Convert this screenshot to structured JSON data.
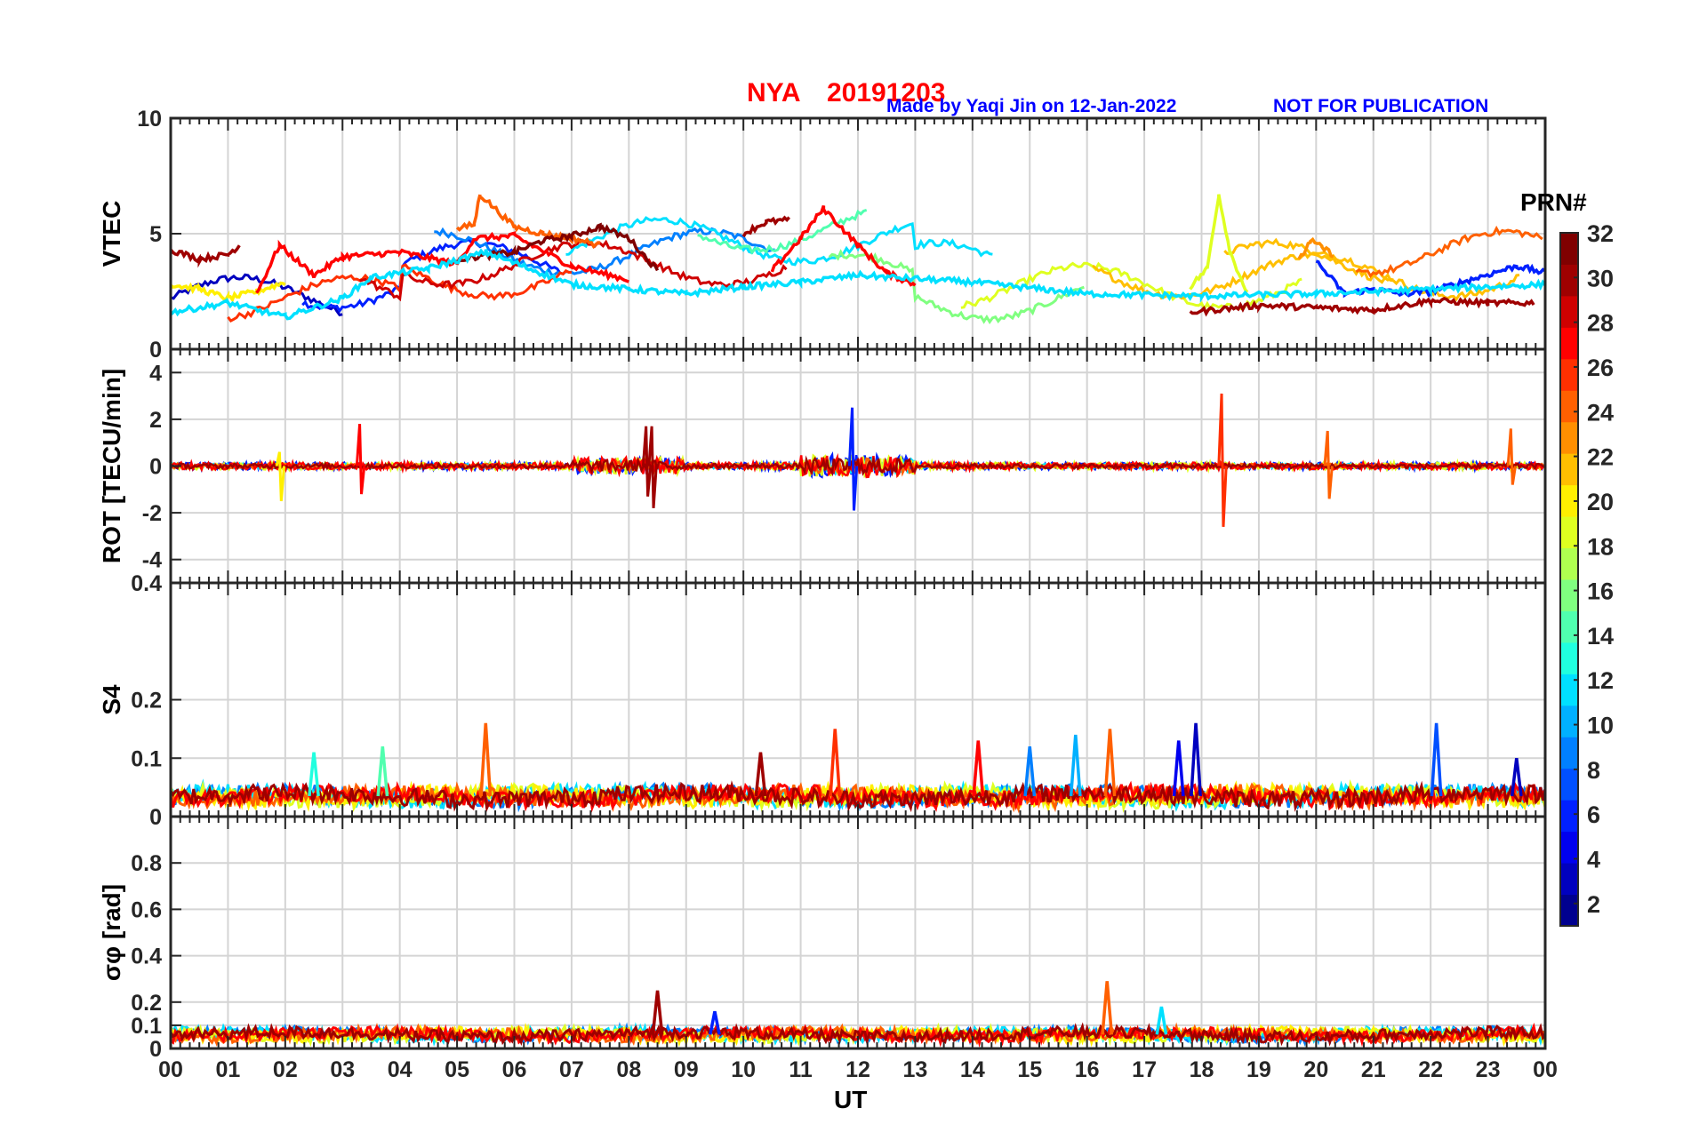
{
  "header": {
    "site": "NYA",
    "date": "20191203",
    "credit": "Made by Yaqi Jin on 12-Jan-2022",
    "notice": "NOT FOR PUBLICATION"
  },
  "colorbar": {
    "title": "PRN#",
    "ticks": [
      "2",
      "4",
      "6",
      "8",
      "10",
      "12",
      "14",
      "16",
      "18",
      "20",
      "22",
      "24",
      "26",
      "28",
      "30",
      "32"
    ],
    "range": [
      1,
      32
    ],
    "colors": [
      "#00008f",
      "#0000bf",
      "#0000ef",
      "#0020ff",
      "#0050ff",
      "#0080ff",
      "#00b0ff",
      "#00e0ff",
      "#20ffdf",
      "#50ffaf",
      "#80ff80",
      "#afff50",
      "#dfff20",
      "#ffef00",
      "#ffbf00",
      "#ff8f00",
      "#ff6000",
      "#ff3000",
      "#ff0000",
      "#cf0000",
      "#9f0000",
      "#800000"
    ]
  },
  "colors": {
    "title_red": "#ff0000",
    "credit_blue": "#0000ff",
    "grid": "#d9d9d9"
  },
  "chart_data": [
    {
      "type": "line",
      "name": "vtec",
      "ylabel": "VTEC",
      "ylim": [
        0,
        10
      ],
      "yticks": [
        "0",
        "5",
        "10"
      ],
      "yticks_values": [
        0,
        5,
        10
      ],
      "grid": true,
      "series": [
        {
          "name": "PRN 31",
          "prn": 31,
          "x": [
            0,
            0.5,
            1,
            1.2
          ],
          "values": [
            4.3,
            3.9,
            4.1,
            4.5
          ]
        },
        {
          "name": "PRN 20",
          "prn": 20,
          "x": [
            0,
            0.5,
            1,
            1.5,
            2
          ],
          "values": [
            2.8,
            2.6,
            2.2,
            2.5,
            2.9
          ]
        },
        {
          "name": "PRN 27",
          "prn": 27,
          "x": [
            1.5,
            1.9,
            2.5,
            3,
            4,
            5,
            5.3,
            6,
            7,
            8
          ],
          "values": [
            2.4,
            4.5,
            3.2,
            4,
            4.2,
            3.7,
            4.8,
            4.9,
            3.6,
            3
          ]
        },
        {
          "name": "PRN 24",
          "prn": 24,
          "x": [
            5,
            5.3,
            5.4,
            6,
            6.5,
            7,
            7.5
          ],
          "values": [
            5.2,
            5.4,
            6.7,
            5.3,
            5,
            4.8,
            4.5
          ]
        },
        {
          "name": "PRN 32",
          "prn": 32,
          "x": [
            5,
            6,
            6.5,
            7,
            7.5,
            8,
            8.5
          ],
          "values": [
            3.9,
            4.2,
            4.7,
            4.9,
            5.3,
            4.8,
            3.4
          ]
        },
        {
          "name": "PRN 30",
          "prn": 30,
          "x": [
            10,
            10.4,
            10.8
          ],
          "values": [
            5,
            5.5,
            5.6
          ]
        },
        {
          "name": "PRN 28",
          "prn": 28,
          "x": [
            10.5,
            11,
            11.4,
            12,
            12.5,
            13
          ],
          "values": [
            3.4,
            4.8,
            6.1,
            4.5,
            3.3,
            2.8
          ]
        },
        {
          "name": "PRN 19",
          "prn": 19,
          "x": [
            17.8,
            18.1,
            18.3,
            18.5,
            18.8
          ],
          "values": [
            2.7,
            3.5,
            6.7,
            4.2,
            2.4
          ]
        },
        {
          "name": "PRN 23",
          "prn": 23,
          "x": [
            19.7,
            19.9,
            20.1,
            20.3
          ],
          "values": [
            3.8,
            4.7,
            4.4,
            4.1
          ]
        },
        {
          "name": "PRN 6",
          "prn": 6,
          "x": [
            20,
            20.5,
            21,
            21.5,
            22,
            23.5,
            24
          ],
          "values": [
            3.8,
            2.4,
            2.6,
            2.4,
            2.5,
            3.6,
            3.3
          ]
        },
        {
          "name": "PRN 31b",
          "prn": 31,
          "x": [
            17.8,
            19,
            20,
            21,
            22,
            23,
            23.8
          ],
          "values": [
            1.6,
            1.9,
            1.8,
            1.7,
            2.1,
            2,
            2
          ]
        },
        {
          "name": "PRN 12",
          "prn": 12,
          "x": [
            0,
            1,
            2,
            3,
            3.5,
            4.5,
            5.5,
            7,
            8,
            9,
            10,
            11,
            12,
            14,
            16,
            18,
            20,
            22,
            24
          ],
          "values": [
            1.6,
            2,
            1.4,
            2.2,
            3.1,
            3.5,
            4.2,
            2.8,
            2.6,
            2.4,
            2.7,
            2.9,
            3.2,
            2.9,
            2.4,
            2.3,
            2.4,
            2.6,
            2.8
          ]
        }
      ]
    },
    {
      "type": "line",
      "name": "rot",
      "ylabel": "ROT [TECU/min]",
      "ylim": [
        -5,
        5
      ],
      "yticks": [
        "-4",
        "-2",
        "0",
        "2",
        "4"
      ],
      "yticks_values": [
        -4,
        -2,
        0,
        2,
        4
      ],
      "grid": true,
      "spikes": [
        {
          "prn": 28,
          "x": 3.3,
          "max": 1.8,
          "min": -1.2
        },
        {
          "prn": 31,
          "x": 8.4,
          "max": 1.7,
          "min": -1.8
        },
        {
          "prn": 31,
          "x": 8.3,
          "max": 1.7,
          "min": -1.3
        },
        {
          "prn": 6,
          "x": 11.9,
          "max": 2.5,
          "min": -1.9
        },
        {
          "prn": 26,
          "x": 18.35,
          "max": 3.1,
          "min": -2.6
        },
        {
          "prn": 24,
          "x": 20.2,
          "max": 1.5,
          "min": -1.4
        },
        {
          "prn": 24,
          "x": 23.4,
          "max": 1.6,
          "min": -0.8
        },
        {
          "prn": 20,
          "x": 1.9,
          "max": 0.6,
          "min": -1.5
        }
      ]
    },
    {
      "type": "line",
      "name": "s4",
      "ylabel": "S4",
      "ylim": [
        0,
        0.4
      ],
      "yticks": [
        "0",
        "0.1",
        "0.2",
        "0.4"
      ],
      "yticks_values": [
        0,
        0.1,
        0.2,
        0.4
      ],
      "grid": true,
      "spikes": [
        {
          "prn": 24,
          "x": 5.5,
          "value": 0.16
        },
        {
          "prn": 26,
          "x": 11.6,
          "value": 0.15
        },
        {
          "prn": 27,
          "x": 14.1,
          "value": 0.13
        },
        {
          "prn": 8,
          "x": 15,
          "value": 0.12
        },
        {
          "prn": 10,
          "x": 15.8,
          "value": 0.14
        },
        {
          "prn": 25,
          "x": 16.4,
          "value": 0.15
        },
        {
          "prn": 2,
          "x": 17.9,
          "value": 0.16
        },
        {
          "prn": 4,
          "x": 17.6,
          "value": 0.13
        },
        {
          "prn": 7,
          "x": 22.1,
          "value": 0.16
        },
        {
          "prn": 3,
          "x": 23.5,
          "value": 0.1
        },
        {
          "prn": 15,
          "x": 3.7,
          "value": 0.12
        },
        {
          "prn": 13,
          "x": 2.5,
          "value": 0.11
        },
        {
          "prn": 30,
          "x": 10.3,
          "value": 0.11
        }
      ]
    },
    {
      "type": "line",
      "name": "sigma_phi",
      "ylabel": "σφ [rad]",
      "ylim": [
        0,
        1
      ],
      "yticks": [
        "0",
        "0.1",
        "0.2",
        "0.4",
        "0.6",
        "0.8"
      ],
      "yticks_values": [
        0,
        0.1,
        0.2,
        0.4,
        0.6,
        0.8
      ],
      "grid": true,
      "spikes": [
        {
          "prn": 31,
          "x": 8.5,
          "value": 0.25
        },
        {
          "prn": 24,
          "x": 16.35,
          "value": 0.29
        },
        {
          "prn": 11,
          "x": 17.3,
          "value": 0.18
        },
        {
          "prn": 6,
          "x": 9.5,
          "value": 0.16
        }
      ]
    }
  ],
  "xaxis": {
    "label": "UT",
    "ticks": [
      "00",
      "01",
      "02",
      "03",
      "04",
      "05",
      "06",
      "07",
      "08",
      "09",
      "10",
      "11",
      "12",
      "13",
      "14",
      "15",
      "16",
      "17",
      "18",
      "19",
      "20",
      "21",
      "22",
      "23",
      "00"
    ],
    "range": [
      0,
      24
    ]
  }
}
